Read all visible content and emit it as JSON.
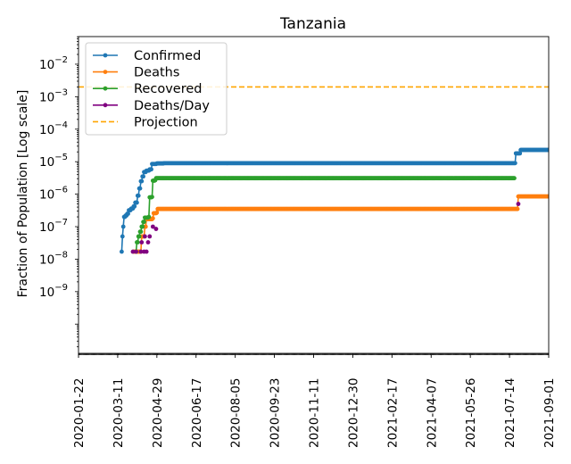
{
  "chart_data": {
    "type": "line",
    "title": "Tanzania",
    "xlabel": "",
    "ylabel": "Fraction of Population [Log scale]",
    "yscale": "log",
    "ylim_exp": [
      -10.9,
      -1.15
    ],
    "y_ticks": [
      {
        "exp": -9,
        "label": "10",
        "sup": "−9"
      },
      {
        "exp": -8,
        "label": "10",
        "sup": "−8"
      },
      {
        "exp": -7,
        "label": "10",
        "sup": "−7"
      },
      {
        "exp": -6,
        "label": "10",
        "sup": "−6"
      },
      {
        "exp": -5,
        "label": "10",
        "sup": "−5"
      },
      {
        "exp": -4,
        "label": "10",
        "sup": "−4"
      },
      {
        "exp": -3,
        "label": "10",
        "sup": "−3"
      },
      {
        "exp": -2,
        "label": "10",
        "sup": "−2"
      }
    ],
    "x_start": "2020-01-22",
    "x_end": "2021-09-01",
    "x_ticks": [
      "2020-01-22",
      "2020-03-11",
      "2020-04-29",
      "2020-06-17",
      "2020-08-05",
      "2020-09-23",
      "2020-11-11",
      "2020-12-30",
      "2021-02-17",
      "2021-04-07",
      "2021-05-26",
      "2021-07-14",
      "2021-09-01"
    ],
    "legend_position": "upper-left",
    "projection": {
      "name": "Projection",
      "value": 0.002,
      "color": "#ffa500"
    },
    "series": [
      {
        "name": "Confirmed",
        "color": "#1f77b4",
        "points": [
          [
            "2020-03-16",
            1.7e-08
          ],
          [
            "2020-03-17",
            5e-08
          ],
          [
            "2020-03-18",
            1e-07
          ],
          [
            "2020-03-19",
            2e-07
          ],
          [
            "2020-03-21",
            2.2e-07
          ],
          [
            "2020-03-23",
            2.5e-07
          ],
          [
            "2020-03-25",
            3.2e-07
          ],
          [
            "2020-03-28",
            3.6e-07
          ],
          [
            "2020-03-31",
            4.2e-07
          ],
          [
            "2020-04-02",
            5.5e-07
          ],
          [
            "2020-04-05",
            9e-07
          ],
          [
            "2020-04-07",
            1.5e-06
          ],
          [
            "2020-04-09",
            2.5e-06
          ],
          [
            "2020-04-11",
            3.5e-06
          ],
          [
            "2020-04-13",
            4.8e-06
          ],
          [
            "2020-04-16",
            5.3e-06
          ],
          [
            "2020-04-20",
            5.8e-06
          ],
          [
            "2020-04-23",
            8.5e-06
          ],
          [
            "2020-04-29",
            8.8e-06
          ],
          [
            "2020-05-08",
            9e-06
          ],
          [
            "2021-07-21",
            9e-06
          ],
          [
            "2021-07-22",
            1.8e-05
          ],
          [
            "2021-07-27",
            1.8e-05
          ],
          [
            "2021-07-28",
            2.3e-05
          ],
          [
            "2021-09-01",
            2.3e-05
          ]
        ]
      },
      {
        "name": "Deaths",
        "color": "#ff7f0e",
        "points": [
          [
            "2020-03-31",
            1.7e-08
          ],
          [
            "2020-04-09",
            1.7e-08
          ],
          [
            "2020-04-10",
            5e-08
          ],
          [
            "2020-04-13",
            5e-08
          ],
          [
            "2020-04-14",
            1e-07
          ],
          [
            "2020-04-16",
            1.7e-07
          ],
          [
            "2020-04-24",
            1.8e-07
          ],
          [
            "2020-04-25",
            2.6e-07
          ],
          [
            "2020-04-29",
            2.7e-07
          ],
          [
            "2020-04-30",
            3.5e-07
          ],
          [
            "2021-07-24",
            3.5e-07
          ],
          [
            "2021-07-25",
            8.5e-07
          ],
          [
            "2021-09-01",
            8.5e-07
          ]
        ]
      },
      {
        "name": "Recovered",
        "color": "#2ca02c",
        "points": [
          [
            "2020-04-03",
            1.7e-08
          ],
          [
            "2020-04-04",
            3.3e-08
          ],
          [
            "2020-04-06",
            5e-08
          ],
          [
            "2020-04-08",
            7e-08
          ],
          [
            "2020-04-10",
            1e-07
          ],
          [
            "2020-04-12",
            1.4e-07
          ],
          [
            "2020-04-14",
            1.9e-07
          ],
          [
            "2020-04-19",
            2e-07
          ],
          [
            "2020-04-20",
            8e-07
          ],
          [
            "2020-04-23",
            8.2e-07
          ],
          [
            "2020-04-24",
            2.6e-06
          ],
          [
            "2020-04-27",
            2.7e-06
          ],
          [
            "2020-04-28",
            3.1e-06
          ],
          [
            "2021-07-20",
            3.1e-06
          ]
        ]
      },
      {
        "name": "Deaths/Day",
        "color": "#800080",
        "scatter": true,
        "points": [
          [
            "2020-03-30",
            1.7e-08
          ],
          [
            "2020-04-03",
            1.7e-08
          ],
          [
            "2020-04-09",
            1.7e-08
          ],
          [
            "2020-04-10",
            3.3e-08
          ],
          [
            "2020-04-13",
            1.7e-08
          ],
          [
            "2020-04-14",
            5e-08
          ],
          [
            "2020-04-16",
            1.7e-08
          ],
          [
            "2020-04-18",
            3.3e-08
          ],
          [
            "2020-04-20",
            5e-08
          ],
          [
            "2020-04-24",
            1e-07
          ],
          [
            "2020-04-28",
            8.5e-08
          ],
          [
            "2021-07-25",
            5e-07
          ]
        ]
      }
    ]
  }
}
